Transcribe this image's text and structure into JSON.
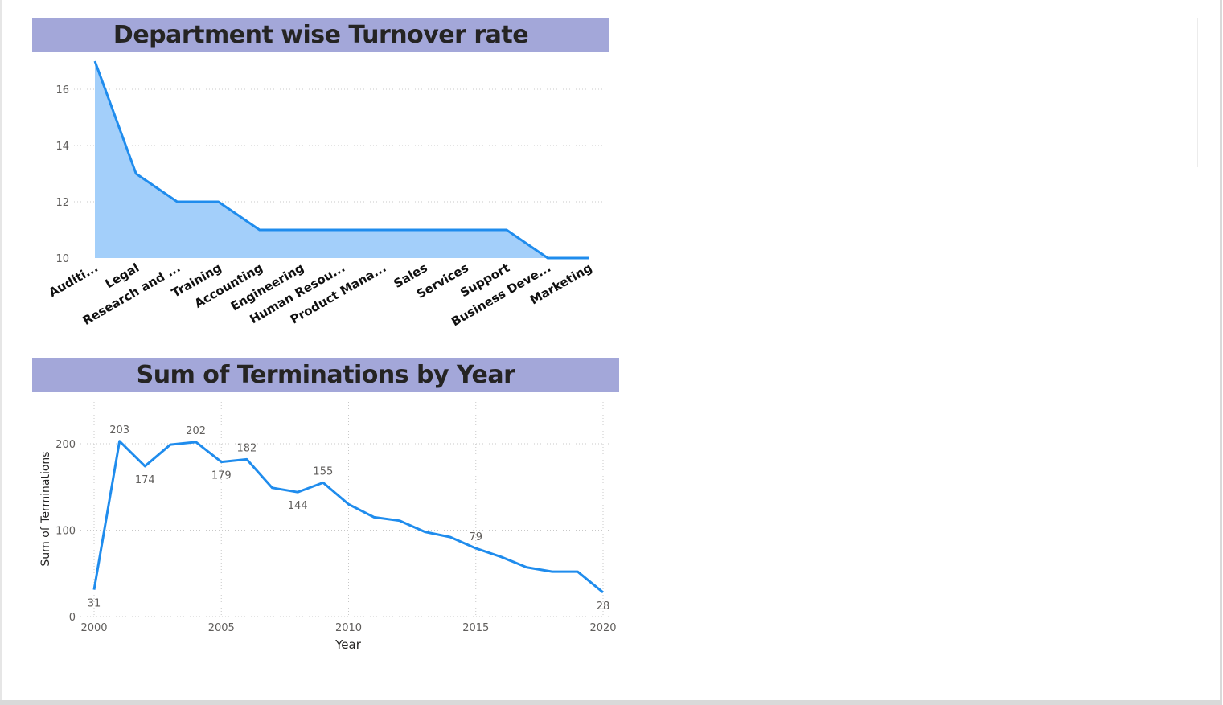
{
  "chart_data": [
    {
      "type": "area",
      "title": "Department wise Turnover rate",
      "categories": [
        "Auditi...",
        "Legal",
        "Research and ...",
        "Training",
        "Accounting",
        "Engineering",
        "Human Resou...",
        "Product Mana...",
        "Sales",
        "Services",
        "Support",
        "Business Deve...",
        "Marketing"
      ],
      "values": [
        17,
        13,
        12,
        12,
        11,
        11,
        11,
        11,
        11,
        11,
        11,
        10,
        10
      ],
      "ylim": [
        10,
        17
      ],
      "yticks": [
        10,
        12,
        14,
        16
      ],
      "xlabel": "",
      "ylabel": "",
      "grid": "horizontal dotted",
      "colors": {
        "line": "#1f8ced",
        "fill": "#a3cffa"
      }
    },
    {
      "type": "line",
      "title": "Sum of Terminations by Year",
      "xlabel": "Year",
      "ylabel": "Sum of Terminations",
      "x": [
        2000,
        2001,
        2002,
        2003,
        2004,
        2005,
        2006,
        2007,
        2008,
        2009,
        2010,
        2011,
        2012,
        2013,
        2014,
        2015,
        2016,
        2017,
        2018,
        2019,
        2020
      ],
      "values": [
        31,
        203,
        174,
        199,
        202,
        179,
        182,
        149,
        144,
        155,
        130,
        115,
        111,
        98,
        92,
        79,
        69,
        57,
        52,
        52,
        28
      ],
      "data_labels": [
        {
          "x": 2000,
          "label": "31",
          "pos": "below"
        },
        {
          "x": 2001,
          "label": "203",
          "pos": "above"
        },
        {
          "x": 2002,
          "label": "174",
          "pos": "below"
        },
        {
          "x": 2004,
          "label": "202",
          "pos": "above"
        },
        {
          "x": 2005,
          "label": "179",
          "pos": "below"
        },
        {
          "x": 2006,
          "label": "182",
          "pos": "above"
        },
        {
          "x": 2008,
          "label": "144",
          "pos": "below"
        },
        {
          "x": 2009,
          "label": "155",
          "pos": "above"
        },
        {
          "x": 2015,
          "label": "79",
          "pos": "above"
        },
        {
          "x": 2020,
          "label": "28",
          "pos": "below"
        }
      ],
      "xlim": [
        2000,
        2020
      ],
      "ylim": [
        0,
        220
      ],
      "xticks": [
        2000,
        2005,
        2010,
        2015,
        2020
      ],
      "yticks": [
        0,
        100,
        200
      ],
      "grid": "dotted both",
      "colors": {
        "line": "#1f8ced"
      }
    }
  ]
}
